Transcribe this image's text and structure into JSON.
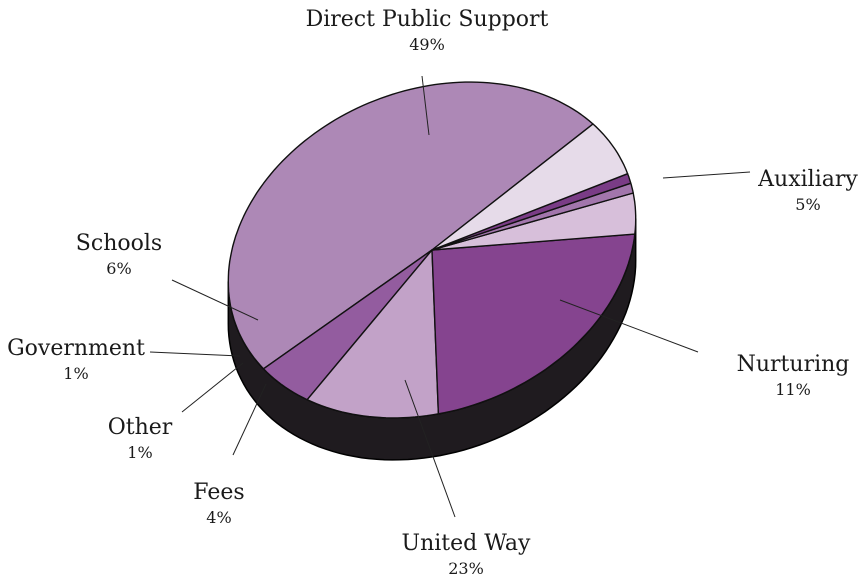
{
  "chart_data": {
    "type": "pie",
    "style": "3d-tilted",
    "slices": [
      {
        "label": "Direct Public Support",
        "value": 49,
        "value_label": "49%",
        "color": "#ad88b6"
      },
      {
        "label": "Auxiliary",
        "value": 5,
        "value_label": "5%",
        "color": "#935c9f"
      },
      {
        "label": "Nurturing",
        "value": 11,
        "value_label": "11%",
        "color": "#c2a2c8"
      },
      {
        "label": "United Way",
        "value": 23,
        "value_label": "23%",
        "color": "#85448f"
      },
      {
        "label": "Fees",
        "value": 4,
        "value_label": "4%",
        "color": "#d7bfda"
      },
      {
        "label": "Other",
        "value": 1,
        "value_label": "1%",
        "color": "#a276ac"
      },
      {
        "label": "Government",
        "value": 1,
        "value_label": "1%",
        "color": "#7a3c86"
      },
      {
        "label": "Schools",
        "value": 6,
        "value_label": "6%",
        "color": "#e6dbe9"
      }
    ],
    "side_color": "#1f1b1f"
  }
}
